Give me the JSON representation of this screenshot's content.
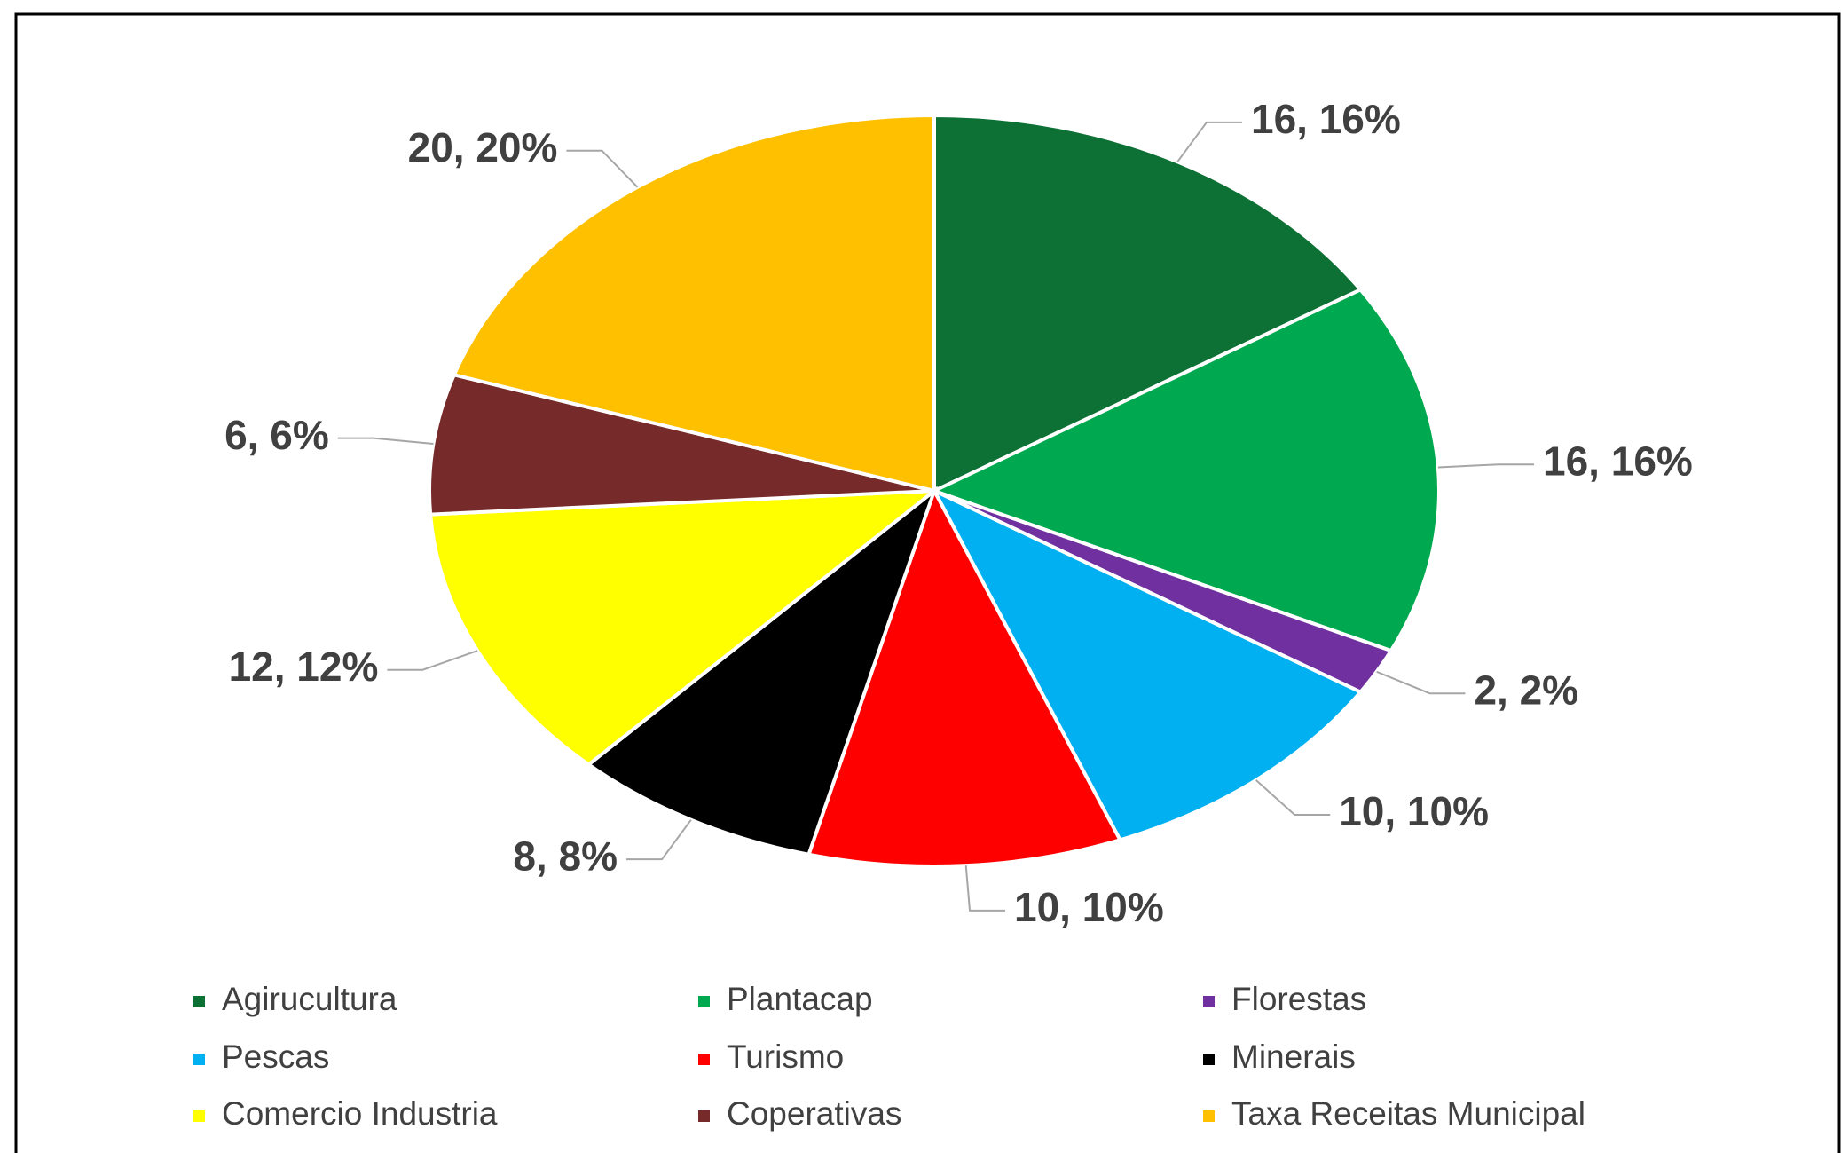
{
  "chart_data": {
    "type": "pie",
    "categories": [
      "Agirucultura",
      "Plantacap",
      "Florestas",
      "Pescas",
      "Turismo",
      "Minerais",
      "Comercio Industria",
      "Coperativas",
      "Taxa Receitas Municipal"
    ],
    "values": [
      16,
      16,
      2,
      10,
      10,
      8,
      12,
      6,
      20
    ],
    "value_labels": [
      "16, 16%",
      "16, 16%",
      "2, 2%",
      "10, 10%",
      "10, 10%",
      "8, 8%",
      "12, 12%",
      "6, 6%",
      "20, 20%"
    ],
    "colors": [
      "#0d7035",
      "#00a94f",
      "#7030a0",
      "#00b0f0",
      "#ff0000",
      "#000000",
      "#ffff00",
      "#772a2a",
      "#ffc000"
    ],
    "legend": "bottom"
  }
}
